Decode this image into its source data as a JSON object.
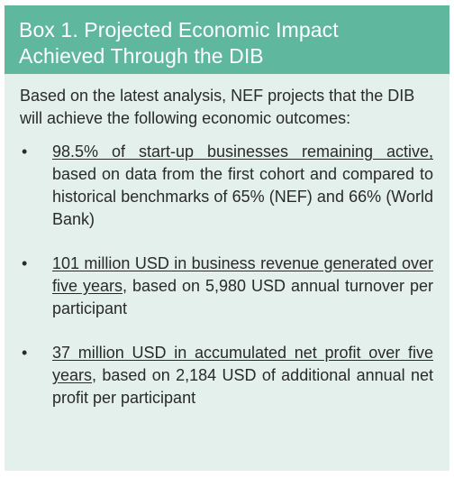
{
  "box": {
    "title_line1": "Box 1. Projected Economic Impact",
    "title_line2": "Achieved Through the DIB",
    "intro": "Based on the latest analysis, NEF projects that the DIB will achieve the following economic outcomes:",
    "items": [
      {
        "highlight": "98.5% of start-up businesses remaining active,",
        "rest": " based on data from the first cohort and compared to historical benchmarks of 65% (NEF) and 66% (World Bank)"
      },
      {
        "highlight": "101 million USD in business revenue generated over five years",
        "rest": ", based on 5,980 USD annual turnover per participant"
      },
      {
        "highlight": "37 million USD in accumulated net profit over five years",
        "rest": ", based on 2,184 USD of additional annual net profit per participant"
      }
    ],
    "bullet_char": "•"
  },
  "colors": {
    "header_bg": "#5fb79e",
    "body_bg": "#e3f0ec"
  }
}
